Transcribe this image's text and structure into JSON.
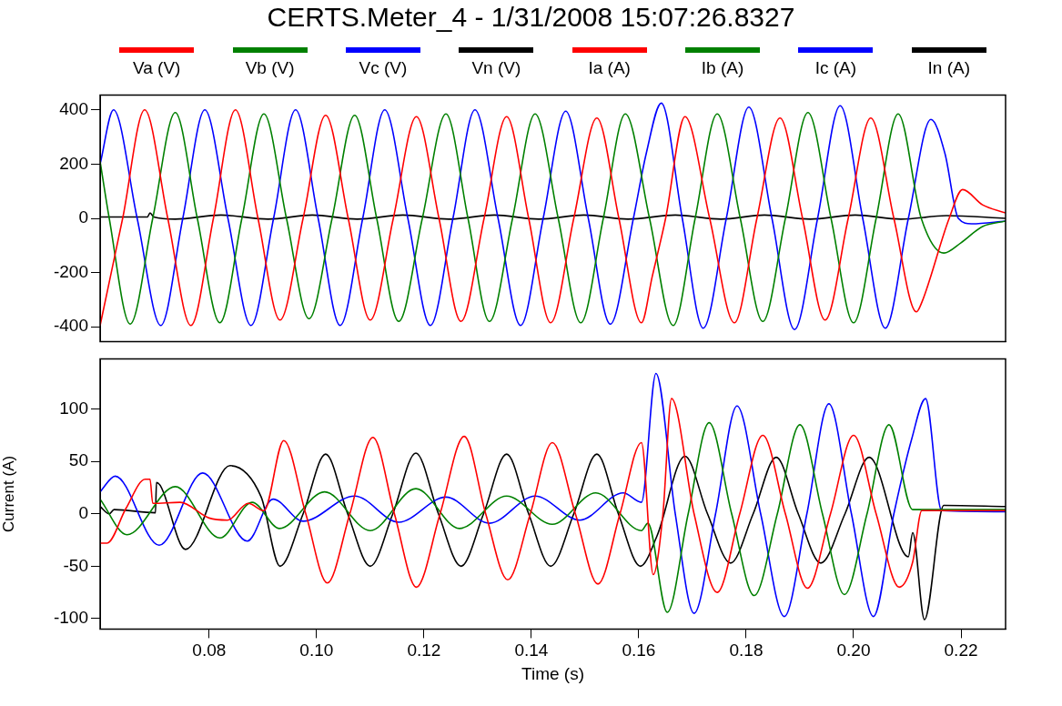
{
  "chart_data": [
    {
      "type": "line",
      "title": "CERTS.Meter_4 - 1/31/2008 15:07:26.8327",
      "legend": "top",
      "tick_labels": "y",
      "xlim": [
        0.0597,
        0.2283
      ],
      "ylim": [
        -455,
        455
      ],
      "yticks": [
        -400,
        -200,
        0,
        200,
        400
      ],
      "series": [
        {
          "name": "Va (V)",
          "color": "#ff0000",
          "x": [
            0.0597,
            0.0639,
            0.068,
            0.0723,
            0.0766,
            0.0808,
            0.0849,
            0.0891,
            0.0932,
            0.0975,
            0.1017,
            0.1059,
            0.11,
            0.1143,
            0.1186,
            0.1228,
            0.1269,
            0.1312,
            0.1354,
            0.1395,
            0.1436,
            0.1479,
            0.1522,
            0.1563,
            0.1605,
            0.1625,
            0.165,
            0.1686,
            0.1732,
            0.1778,
            0.182,
            0.1863,
            0.1905,
            0.1947,
            0.199,
            0.2032,
            0.2075,
            0.2117,
            0.2127,
            0.2178,
            0.2203,
            0.224,
            0.2283
          ],
          "values": [
            -395,
            0,
            400,
            0,
            -395,
            0,
            400,
            0,
            -375,
            0,
            380,
            0,
            -375,
            0,
            375,
            0,
            -380,
            0,
            375,
            0,
            -385,
            0,
            370,
            0,
            -385,
            -215,
            0,
            375,
            0,
            -385,
            0,
            370,
            0,
            -375,
            0,
            370,
            0,
            -345,
            -310,
            0,
            106,
            50,
            20
          ]
        },
        {
          "name": "Vb (V)",
          "color": "#008000",
          "x": [
            0.0597,
            0.0614,
            0.0653,
            0.0695,
            0.0737,
            0.0778,
            0.082,
            0.0861,
            0.0902,
            0.0944,
            0.0986,
            0.1029,
            0.1071,
            0.1112,
            0.1153,
            0.1197,
            0.1241,
            0.1282,
            0.1322,
            0.1365,
            0.1407,
            0.145,
            0.1492,
            0.1534,
            0.1575,
            0.162,
            0.1664,
            0.1705,
            0.1746,
            0.1789,
            0.1831,
            0.1873,
            0.1915,
            0.1958,
            0.2,
            0.2042,
            0.2083,
            0.2126,
            0.2168,
            0.22,
            0.224,
            0.2283
          ],
          "values": [
            210,
            0,
            -390,
            0,
            390,
            0,
            -385,
            0,
            385,
            0,
            -370,
            0,
            380,
            0,
            -380,
            0,
            385,
            0,
            -380,
            0,
            385,
            0,
            -385,
            0,
            385,
            0,
            -395,
            0,
            385,
            0,
            -380,
            0,
            390,
            0,
            -385,
            0,
            385,
            0,
            -128,
            -90,
            -30,
            -10
          ]
        },
        {
          "name": "Vc (V)",
          "color": "#0000ff",
          "x": [
            0.0597,
            0.0622,
            0.0666,
            0.071,
            0.0751,
            0.0792,
            0.0835,
            0.0878,
            0.092,
            0.0961,
            0.1003,
            0.1044,
            0.1086,
            0.1127,
            0.117,
            0.1212,
            0.1254,
            0.1295,
            0.1338,
            0.138,
            0.1422,
            0.1464,
            0.1506,
            0.1547,
            0.159,
            0.1614,
            0.1642,
            0.1681,
            0.172,
            0.1763,
            0.1805,
            0.1848,
            0.189,
            0.1933,
            0.1975,
            0.2017,
            0.2059,
            0.2102,
            0.2144,
            0.217,
            0.2195,
            0.222,
            0.2283
          ],
          "values": [
            200,
            400,
            0,
            -395,
            0,
            400,
            0,
            -395,
            0,
            400,
            0,
            -395,
            0,
            400,
            0,
            -395,
            0,
            400,
            0,
            -395,
            0,
            395,
            0,
            -390,
            0,
            240,
            425,
            0,
            -405,
            0,
            410,
            0,
            -410,
            0,
            415,
            0,
            -405,
            0,
            365,
            240,
            0,
            -20,
            -10
          ]
        },
        {
          "name": "Vn (V)",
          "color": "#000000",
          "x": [
            0.0597,
            0.0685,
            0.069,
            0.0697,
            0.0737,
            0.0822,
            0.091,
            0.0992,
            0.1076,
            0.1161,
            0.1246,
            0.1331,
            0.1414,
            0.1498,
            0.158,
            0.1668,
            0.1753,
            0.1834,
            0.1919,
            0.2003,
            0.2088,
            0.2173,
            0.2283
          ],
          "values": [
            5,
            5,
            20,
            5,
            -3,
            12,
            -3,
            12,
            -3,
            12,
            -3,
            12,
            -3,
            12,
            -3,
            12,
            -3,
            12,
            -3,
            12,
            -3,
            10,
            0
          ]
        }
      ]
    },
    {
      "type": "line",
      "ylabel": "Current (A)",
      "xlabel": "Time (s)",
      "legend": "top",
      "xlim": [
        0.0597,
        0.2283
      ],
      "xticks": [
        {
          "value": 0.08,
          "label": "0.08"
        },
        {
          "value": 0.1,
          "label": "0.10"
        },
        {
          "value": 0.12,
          "label": "0.12"
        },
        {
          "value": 0.14,
          "label": "0.14"
        },
        {
          "value": 0.16,
          "label": "0.16"
        },
        {
          "value": 0.18,
          "label": "0.18"
        },
        {
          "value": 0.2,
          "label": "0.20"
        },
        {
          "value": 0.22,
          "label": "0.22"
        }
      ],
      "ylim": [
        -110,
        148
      ],
      "yticks": [
        -100,
        -50,
        0,
        50,
        100
      ],
      "series": [
        {
          "name": "Ia (A)",
          "color": "#ff0000",
          "x": [
            0.0597,
            0.061,
            0.0645,
            0.0681,
            0.069,
            0.0695,
            0.0746,
            0.08,
            0.0834,
            0.0873,
            0.0902,
            0.0939,
            0.098,
            0.102,
            0.1062,
            0.1105,
            0.1145,
            0.1186,
            0.123,
            0.1275,
            0.1315,
            0.1356,
            0.1398,
            0.1439,
            0.1482,
            0.1524,
            0.1565,
            0.1605,
            0.1627,
            0.1645,
            0.1661,
            0.1703,
            0.1746,
            0.1788,
            0.1831,
            0.1873,
            0.1914,
            0.1957,
            0.2,
            0.2042,
            0.2085,
            0.211,
            0.2127,
            0.2283
          ],
          "values": [
            -28,
            -28,
            5,
            33,
            33,
            10,
            11,
            -4,
            -6,
            10,
            3,
            70,
            0,
            -66,
            0,
            73,
            0,
            -70,
            0,
            74,
            0,
            -63,
            0,
            68,
            0,
            -67,
            0,
            68,
            -58,
            0,
            110,
            0,
            -75,
            0,
            75,
            0,
            -71,
            0,
            75,
            0,
            -70,
            -46,
            3,
            3
          ]
        },
        {
          "name": "Ib (A)",
          "color": "#008000",
          "x": [
            0.0597,
            0.0647,
            0.0737,
            0.082,
            0.088,
            0.0931,
            0.1015,
            0.11,
            0.1185,
            0.1266,
            0.1354,
            0.1439,
            0.152,
            0.1605,
            0.1617,
            0.1653,
            0.1692,
            0.1731,
            0.1773,
            0.1815,
            0.1858,
            0.19,
            0.1942,
            0.1983,
            0.2025,
            0.2066,
            0.211,
            0.2283
          ],
          "values": [
            14,
            -20,
            26,
            -23,
            11,
            -14,
            21,
            -16,
            24,
            -14,
            17,
            -10,
            20,
            -16,
            -9,
            -94,
            0,
            87,
            0,
            -78,
            0,
            85,
            0,
            -77,
            0,
            85,
            4,
            4
          ]
        },
        {
          "name": "Ic (A)",
          "color": "#0000ff",
          "x": [
            0.0597,
            0.0625,
            0.0707,
            0.0788,
            0.0871,
            0.0919,
            0.0975,
            0.1071,
            0.1153,
            0.1241,
            0.1322,
            0.1407,
            0.149,
            0.1571,
            0.1605,
            0.1632,
            0.1668,
            0.1703,
            0.1743,
            0.1783,
            0.1827,
            0.1871,
            0.1913,
            0.1954,
            0.1996,
            0.2037,
            0.2075,
            0.2108,
            0.2134,
            0.2164,
            0.2283
          ],
          "values": [
            21,
            36,
            -30,
            39,
            -26,
            14,
            -7,
            17,
            -8,
            16,
            -9,
            17,
            -6,
            20,
            11,
            134,
            0,
            -95,
            0,
            103,
            0,
            -98,
            0,
            105,
            0,
            -98,
            0,
            71,
            110,
            3,
            2
          ]
        },
        {
          "name": "In (A)",
          "color": "#000000",
          "x": [
            0.0597,
            0.0614,
            0.0623,
            0.07,
            0.0702,
            0.0756,
            0.0839,
            0.0897,
            0.0932,
            0.0975,
            0.1017,
            0.1058,
            0.11,
            0.1142,
            0.1185,
            0.1227,
            0.1269,
            0.1311,
            0.1354,
            0.1395,
            0.1436,
            0.1479,
            0.1522,
            0.1562,
            0.1603,
            0.1634,
            0.1686,
            0.1728,
            0.1771,
            0.1813,
            0.1856,
            0.1897,
            0.1939,
            0.1984,
            0.2029,
            0.2102,
            0.211,
            0.2132,
            0.2168,
            0.2283
          ],
          "values": [
            7,
            0,
            4,
            1,
            30,
            -34,
            46,
            16,
            -50,
            0,
            57,
            0,
            -50,
            0,
            58,
            0,
            -50,
            0,
            57,
            0,
            -50,
            0,
            57,
            0,
            -50,
            -21,
            55,
            0,
            -47,
            0,
            54,
            0,
            -47,
            0,
            54,
            -41,
            -18,
            -101,
            8,
            7
          ]
        }
      ]
    }
  ]
}
